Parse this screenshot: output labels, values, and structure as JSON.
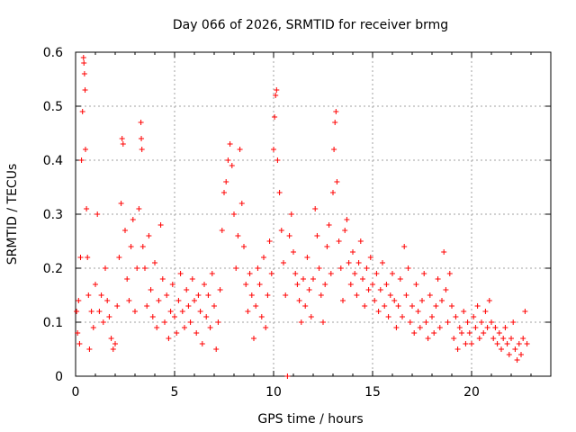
{
  "chart_data": {
    "type": "scatter",
    "title": "Day 066 of 2026, SRMTID for receiver brmg",
    "xlabel": "GPS time / hours",
    "ylabel": "SRMTID / TECUs",
    "xlim": [
      0,
      24
    ],
    "ylim": [
      0,
      0.6
    ],
    "xticks": [
      "0",
      "5",
      "10",
      "15",
      "20"
    ],
    "yticks": [
      "0",
      "0.1",
      "0.2",
      "0.3",
      "0.4",
      "0.5",
      "0.6"
    ],
    "grid": true,
    "marker": "plus",
    "marker_color": "#ff0000",
    "series": [
      {
        "name": "SRMTID",
        "points": [
          [
            0.05,
            0.12
          ],
          [
            0.1,
            0.08
          ],
          [
            0.15,
            0.14
          ],
          [
            0.2,
            0.06
          ],
          [
            0.25,
            0.22
          ],
          [
            0.3,
            0.4
          ],
          [
            0.35,
            0.49
          ],
          [
            0.4,
            0.59
          ],
          [
            0.42,
            0.58
          ],
          [
            0.45,
            0.56
          ],
          [
            0.48,
            0.53
          ],
          [
            0.5,
            0.42
          ],
          [
            0.55,
            0.31
          ],
          [
            0.6,
            0.22
          ],
          [
            0.65,
            0.15
          ],
          [
            0.7,
            0.05
          ],
          [
            0.8,
            0.12
          ],
          [
            0.9,
            0.09
          ],
          [
            1.0,
            0.17
          ],
          [
            1.1,
            0.3
          ],
          [
            1.2,
            0.12
          ],
          [
            1.3,
            0.15
          ],
          [
            1.4,
            0.1
          ],
          [
            1.5,
            0.2
          ],
          [
            1.6,
            0.14
          ],
          [
            1.7,
            0.11
          ],
          [
            1.8,
            0.07
          ],
          [
            1.9,
            0.05
          ],
          [
            2.0,
            0.06
          ],
          [
            2.1,
            0.13
          ],
          [
            2.2,
            0.22
          ],
          [
            2.3,
            0.32
          ],
          [
            2.35,
            0.44
          ],
          [
            2.4,
            0.43
          ],
          [
            2.5,
            0.27
          ],
          [
            2.6,
            0.18
          ],
          [
            2.7,
            0.14
          ],
          [
            2.8,
            0.24
          ],
          [
            2.9,
            0.29
          ],
          [
            3.0,
            0.12
          ],
          [
            3.1,
            0.2
          ],
          [
            3.2,
            0.31
          ],
          [
            3.3,
            0.47
          ],
          [
            3.32,
            0.44
          ],
          [
            3.35,
            0.42
          ],
          [
            3.4,
            0.24
          ],
          [
            3.5,
            0.2
          ],
          [
            3.6,
            0.13
          ],
          [
            3.7,
            0.26
          ],
          [
            3.8,
            0.16
          ],
          [
            3.9,
            0.11
          ],
          [
            4.0,
            0.21
          ],
          [
            4.1,
            0.09
          ],
          [
            4.2,
            0.14
          ],
          [
            4.3,
            0.28
          ],
          [
            4.4,
            0.18
          ],
          [
            4.5,
            0.1
          ],
          [
            4.6,
            0.15
          ],
          [
            4.7,
            0.07
          ],
          [
            4.8,
            0.12
          ],
          [
            4.9,
            0.17
          ],
          [
            5.0,
            0.11
          ],
          [
            5.1,
            0.08
          ],
          [
            5.2,
            0.14
          ],
          [
            5.3,
            0.19
          ],
          [
            5.4,
            0.12
          ],
          [
            5.5,
            0.09
          ],
          [
            5.6,
            0.16
          ],
          [
            5.7,
            0.13
          ],
          [
            5.8,
            0.1
          ],
          [
            5.9,
            0.18
          ],
          [
            6.0,
            0.14
          ],
          [
            6.1,
            0.08
          ],
          [
            6.2,
            0.15
          ],
          [
            6.3,
            0.12
          ],
          [
            6.4,
            0.06
          ],
          [
            6.5,
            0.17
          ],
          [
            6.6,
            0.11
          ],
          [
            6.7,
            0.15
          ],
          [
            6.8,
            0.09
          ],
          [
            6.9,
            0.19
          ],
          [
            7.0,
            0.13
          ],
          [
            7.1,
            0.05
          ],
          [
            7.2,
            0.1
          ],
          [
            7.3,
            0.16
          ],
          [
            7.4,
            0.27
          ],
          [
            7.5,
            0.34
          ],
          [
            7.6,
            0.36
          ],
          [
            7.7,
            0.4
          ],
          [
            7.8,
            0.43
          ],
          [
            7.9,
            0.39
          ],
          [
            8.0,
            0.3
          ],
          [
            8.1,
            0.2
          ],
          [
            8.2,
            0.26
          ],
          [
            8.3,
            0.42
          ],
          [
            8.4,
            0.32
          ],
          [
            8.5,
            0.24
          ],
          [
            8.6,
            0.17
          ],
          [
            8.7,
            0.12
          ],
          [
            8.8,
            0.19
          ],
          [
            8.9,
            0.15
          ],
          [
            9.0,
            0.07
          ],
          [
            9.1,
            0.13
          ],
          [
            9.2,
            0.2
          ],
          [
            9.3,
            0.17
          ],
          [
            9.4,
            0.11
          ],
          [
            9.5,
            0.22
          ],
          [
            9.6,
            0.09
          ],
          [
            9.7,
            0.15
          ],
          [
            9.8,
            0.25
          ],
          [
            9.9,
            0.19
          ],
          [
            10.0,
            0.42
          ],
          [
            10.05,
            0.48
          ],
          [
            10.1,
            0.52
          ],
          [
            10.15,
            0.53
          ],
          [
            10.2,
            0.4
          ],
          [
            10.3,
            0.34
          ],
          [
            10.4,
            0.27
          ],
          [
            10.5,
            0.21
          ],
          [
            10.6,
            0.15
          ],
          [
            10.7,
            0.0
          ],
          [
            10.8,
            0.26
          ],
          [
            10.9,
            0.3
          ],
          [
            11.0,
            0.23
          ],
          [
            11.1,
            0.19
          ],
          [
            11.2,
            0.17
          ],
          [
            11.3,
            0.14
          ],
          [
            11.4,
            0.1
          ],
          [
            11.5,
            0.18
          ],
          [
            11.6,
            0.13
          ],
          [
            11.7,
            0.22
          ],
          [
            11.8,
            0.16
          ],
          [
            11.9,
            0.11
          ],
          [
            12.0,
            0.18
          ],
          [
            12.1,
            0.31
          ],
          [
            12.2,
            0.26
          ],
          [
            12.3,
            0.2
          ],
          [
            12.4,
            0.15
          ],
          [
            12.5,
            0.1
          ],
          [
            12.6,
            0.17
          ],
          [
            12.7,
            0.24
          ],
          [
            12.8,
            0.28
          ],
          [
            12.9,
            0.19
          ],
          [
            13.0,
            0.34
          ],
          [
            13.05,
            0.42
          ],
          [
            13.1,
            0.47
          ],
          [
            13.15,
            0.49
          ],
          [
            13.2,
            0.36
          ],
          [
            13.3,
            0.25
          ],
          [
            13.4,
            0.2
          ],
          [
            13.5,
            0.14
          ],
          [
            13.6,
            0.27
          ],
          [
            13.7,
            0.29
          ],
          [
            13.8,
            0.21
          ],
          [
            13.9,
            0.17
          ],
          [
            14.0,
            0.23
          ],
          [
            14.1,
            0.19
          ],
          [
            14.2,
            0.15
          ],
          [
            14.3,
            0.21
          ],
          [
            14.4,
            0.25
          ],
          [
            14.5,
            0.18
          ],
          [
            14.6,
            0.13
          ],
          [
            14.7,
            0.2
          ],
          [
            14.8,
            0.16
          ],
          [
            14.9,
            0.22
          ],
          [
            15.0,
            0.17
          ],
          [
            15.1,
            0.14
          ],
          [
            15.2,
            0.19
          ],
          [
            15.3,
            0.12
          ],
          [
            15.4,
            0.16
          ],
          [
            15.5,
            0.21
          ],
          [
            15.6,
            0.13
          ],
          [
            15.7,
            0.17
          ],
          [
            15.8,
            0.11
          ],
          [
            15.9,
            0.15
          ],
          [
            16.0,
            0.19
          ],
          [
            16.1,
            0.14
          ],
          [
            16.2,
            0.09
          ],
          [
            16.3,
            0.13
          ],
          [
            16.4,
            0.18
          ],
          [
            16.5,
            0.11
          ],
          [
            16.6,
            0.24
          ],
          [
            16.7,
            0.15
          ],
          [
            16.8,
            0.2
          ],
          [
            16.9,
            0.1
          ],
          [
            17.0,
            0.13
          ],
          [
            17.1,
            0.08
          ],
          [
            17.2,
            0.17
          ],
          [
            17.3,
            0.12
          ],
          [
            17.4,
            0.09
          ],
          [
            17.5,
            0.14
          ],
          [
            17.6,
            0.19
          ],
          [
            17.7,
            0.1
          ],
          [
            17.8,
            0.07
          ],
          [
            17.9,
            0.15
          ],
          [
            18.0,
            0.11
          ],
          [
            18.1,
            0.08
          ],
          [
            18.2,
            0.13
          ],
          [
            18.3,
            0.18
          ],
          [
            18.4,
            0.09
          ],
          [
            18.5,
            0.14
          ],
          [
            18.6,
            0.23
          ],
          [
            18.7,
            0.16
          ],
          [
            18.8,
            0.1
          ],
          [
            18.9,
            0.19
          ],
          [
            19.0,
            0.13
          ],
          [
            19.1,
            0.07
          ],
          [
            19.2,
            0.11
          ],
          [
            19.3,
            0.05
          ],
          [
            19.4,
            0.09
          ],
          [
            19.5,
            0.08
          ],
          [
            19.6,
            0.12
          ],
          [
            19.7,
            0.06
          ],
          [
            19.8,
            0.1
          ],
          [
            19.9,
            0.08
          ],
          [
            20.0,
            0.06
          ],
          [
            20.1,
            0.11
          ],
          [
            20.2,
            0.09
          ],
          [
            20.3,
            0.13
          ],
          [
            20.4,
            0.07
          ],
          [
            20.5,
            0.1
          ],
          [
            20.6,
            0.08
          ],
          [
            20.7,
            0.12
          ],
          [
            20.8,
            0.09
          ],
          [
            20.9,
            0.14
          ],
          [
            21.0,
            0.1
          ],
          [
            21.1,
            0.07
          ],
          [
            21.2,
            0.09
          ],
          [
            21.3,
            0.06
          ],
          [
            21.4,
            0.08
          ],
          [
            21.5,
            0.05
          ],
          [
            21.6,
            0.07
          ],
          [
            21.7,
            0.09
          ],
          [
            21.8,
            0.06
          ],
          [
            21.9,
            0.04
          ],
          [
            22.0,
            0.07
          ],
          [
            22.1,
            0.1
          ],
          [
            22.2,
            0.05
          ],
          [
            22.3,
            0.03
          ],
          [
            22.4,
            0.06
          ],
          [
            22.5,
            0.04
          ],
          [
            22.6,
            0.07
          ],
          [
            22.7,
            0.12
          ],
          [
            22.8,
            0.06
          ]
        ]
      }
    ]
  }
}
